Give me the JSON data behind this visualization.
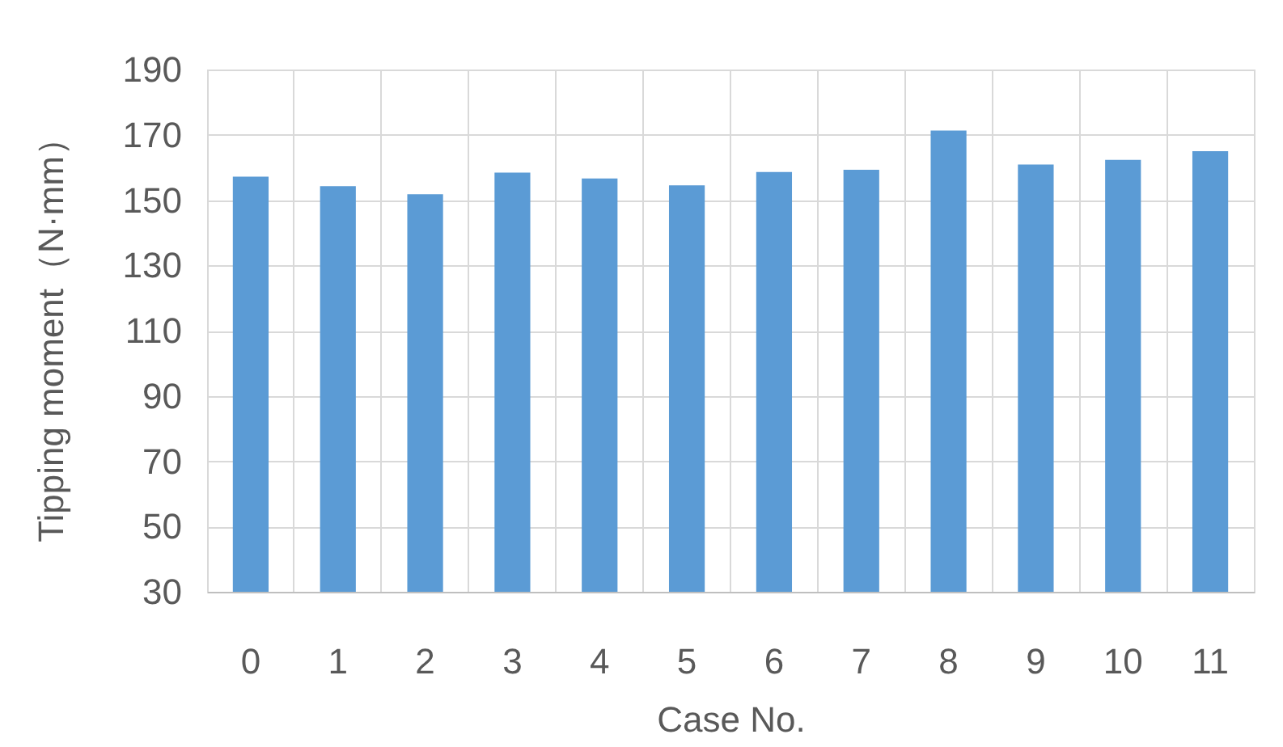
{
  "chart_data": {
    "type": "bar",
    "xlabel": "Case No.",
    "ylabel": "Tipping moment（N·mm）",
    "categories": [
      "0",
      "1",
      "2",
      "3",
      "4",
      "5",
      "6",
      "7",
      "8",
      "9",
      "10",
      "11"
    ],
    "values": [
      157.2,
      154.3,
      151.8,
      158.4,
      156.6,
      154.5,
      158.6,
      159.3,
      171.3,
      160.9,
      162.3,
      165.0
    ],
    "color": "#5b9bd5",
    "ylim": [
      30,
      190
    ],
    "yticks": [
      30,
      50,
      70,
      90,
      110,
      130,
      150,
      170,
      190
    ],
    "grid": true
  }
}
